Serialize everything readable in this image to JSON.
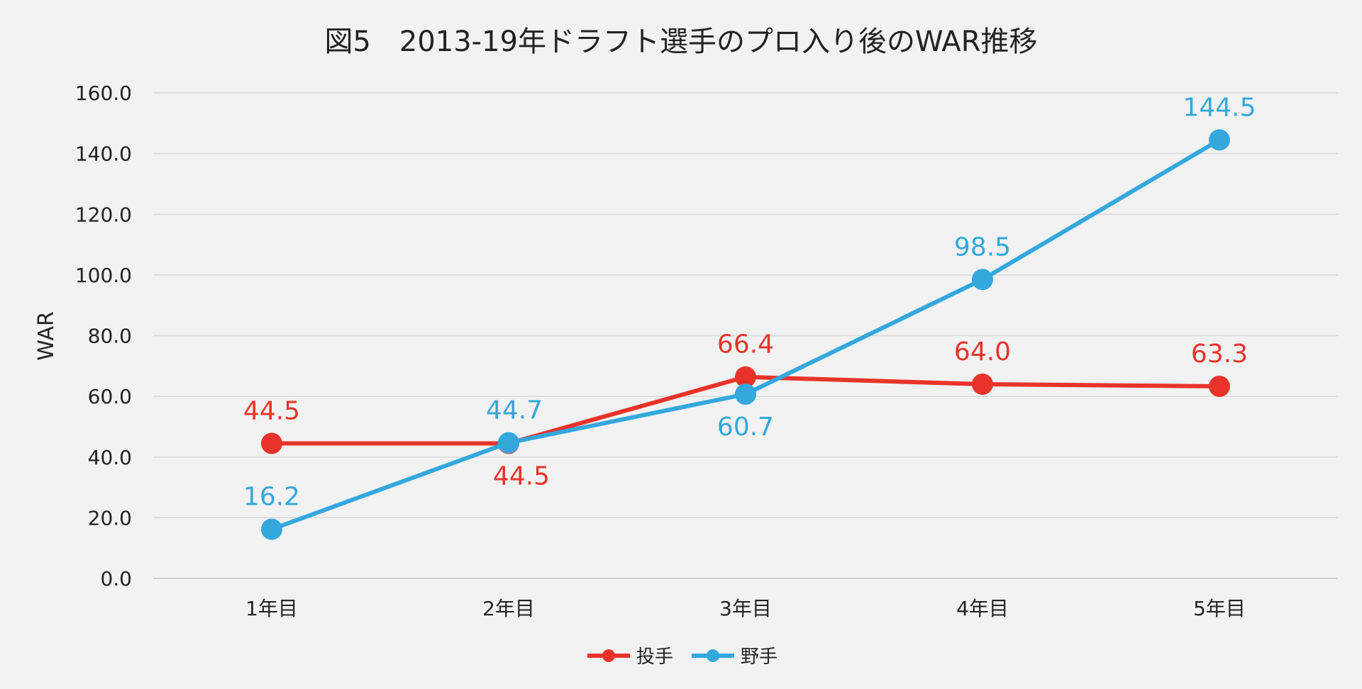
{
  "chart_data": {
    "type": "line",
    "title": "図5　2013-19年ドラフト選手のプロ入り後のWAR推移",
    "xlabel": "",
    "ylabel": "WAR",
    "categories": [
      "1年目",
      "2年目",
      "3年目",
      "4年目",
      "5年目"
    ],
    "ylim": [
      0,
      160
    ],
    "yticks": [
      "0.0",
      "20.0",
      "40.0",
      "60.0",
      "80.0",
      "100.0",
      "120.0",
      "140.0",
      "160.0"
    ],
    "grid": true,
    "legend_position": "bottom",
    "series": [
      {
        "name": "投手",
        "color": "#e8332b",
        "values": [
          44.5,
          44.5,
          66.4,
          64.0,
          63.3
        ],
        "labels": [
          "44.5",
          "44.5",
          "66.4",
          "64.0",
          "63.3"
        ]
      },
      {
        "name": "野手",
        "color": "#34a8dc",
        "values": [
          16.2,
          44.7,
          60.7,
          98.5,
          144.5
        ],
        "labels": [
          "16.2",
          "44.7",
          "60.7",
          "98.5",
          "144.5"
        ]
      }
    ]
  }
}
